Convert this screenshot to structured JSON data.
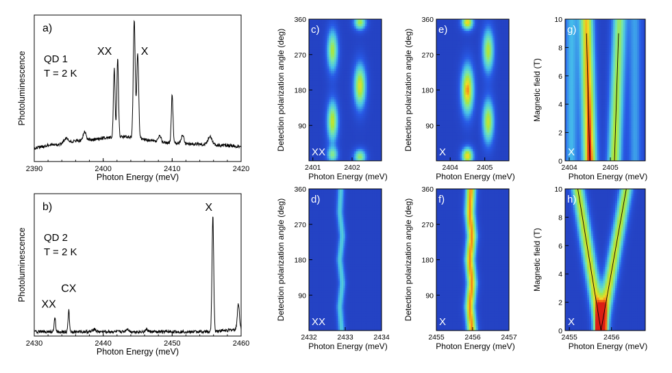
{
  "chart_data": [
    {
      "id": "a",
      "type": "line",
      "panel_label": "a)",
      "annotation_lines": [
        "QD 1",
        "T = 2 K"
      ],
      "xlabel": "Photon Energy (meV)",
      "ylabel": "Photoluminescence",
      "xlim": [
        2390,
        2420
      ],
      "ylim": [
        0,
        100
      ],
      "xticks": [
        2390,
        2400,
        2410,
        2420
      ],
      "peak_labels": [
        {
          "text": "XX",
          "x": 2400.2,
          "y": 73
        },
        {
          "text": "X",
          "x": 2406.0,
          "y": 73
        }
      ],
      "baseline": {
        "x": [
          2390,
          2392,
          2394,
          2396,
          2398,
          2399,
          2400,
          2403,
          2405,
          2407,
          2409,
          2412,
          2414,
          2416,
          2418,
          2420
        ],
        "y": [
          9,
          11,
          12,
          14,
          15,
          15,
          16,
          17,
          16,
          14,
          13,
          12,
          12,
          11,
          11,
          10
        ]
      },
      "peaks": [
        {
          "x": 2401.6,
          "h": 47,
          "w": 0.12
        },
        {
          "x": 2402.1,
          "h": 53,
          "w": 0.12
        },
        {
          "x": 2404.5,
          "h": 80,
          "w": 0.14
        },
        {
          "x": 2405.0,
          "h": 58,
          "w": 0.14
        },
        {
          "x": 2410.0,
          "h": 33,
          "w": 0.12
        },
        {
          "x": 2408.2,
          "h": 4,
          "w": 0.2
        },
        {
          "x": 2411.5,
          "h": 6,
          "w": 0.2
        },
        {
          "x": 2415.5,
          "h": 6,
          "w": 0.3
        },
        {
          "x": 2394.6,
          "h": 3,
          "w": 0.3
        },
        {
          "x": 2397.3,
          "h": 6,
          "w": 0.2
        }
      ]
    },
    {
      "id": "b",
      "type": "line",
      "panel_label": "b)",
      "annotation_lines": [
        "QD 2",
        "T = 2 K"
      ],
      "xlabel": "Photon Energy (meV)",
      "ylabel": "Photoluminescence",
      "xlim": [
        2430,
        2460
      ],
      "ylim": [
        0,
        100
      ],
      "xticks": [
        2430,
        2440,
        2450,
        2460
      ],
      "peak_labels": [
        {
          "text": "XX",
          "x": 2432.1,
          "y": 20
        },
        {
          "text": "CX",
          "x": 2435.0,
          "y": 31
        },
        {
          "text": "X",
          "x": 2455.3,
          "y": 88
        }
      ],
      "baseline": {
        "x": [
          2430,
          2435,
          2440,
          2445,
          2450,
          2455,
          2458,
          2460
        ],
        "y": [
          3,
          3,
          3,
          3,
          3,
          3,
          4,
          5
        ]
      },
      "peaks": [
        {
          "x": 2433.0,
          "h": 10,
          "w": 0.1
        },
        {
          "x": 2435.0,
          "h": 15,
          "w": 0.1
        },
        {
          "x": 2455.9,
          "h": 82,
          "w": 0.12
        },
        {
          "x": 2459.6,
          "h": 18,
          "w": 0.15
        },
        {
          "x": 2438.7,
          "h": 2,
          "w": 0.2
        },
        {
          "x": 2443.5,
          "h": 2,
          "w": 0.2
        },
        {
          "x": 2446.3,
          "h": 1.5,
          "w": 0.2
        }
      ]
    },
    {
      "id": "c",
      "type": "heatmap",
      "panel_label": "c)",
      "corner_label": "XX",
      "xlabel": "Photon Energy (meV)",
      "ylabel": "Detection polarization angle (deg)",
      "xlim": [
        2400.9,
        2402.75
      ],
      "ylim": [
        0,
        360
      ],
      "xticks": [
        2401,
        2402
      ],
      "yticks": [
        90,
        180,
        270,
        360
      ],
      "blobs": [
        {
          "x": 2401.5,
          "y": 15,
          "sx": 0.1,
          "sy": 14,
          "a": 0.55
        },
        {
          "x": 2401.5,
          "y": 100,
          "sx": 0.1,
          "sy": 38,
          "a": 0.75
        },
        {
          "x": 2401.5,
          "y": 280,
          "sx": 0.1,
          "sy": 38,
          "a": 0.7
        },
        {
          "x": 2402.2,
          "y": 10,
          "sx": 0.11,
          "sy": 14,
          "a": 0.65
        },
        {
          "x": 2402.2,
          "y": 190,
          "sx": 0.11,
          "sy": 40,
          "a": 0.8
        },
        {
          "x": 2402.2,
          "y": 352,
          "sx": 0.11,
          "sy": 14,
          "a": 0.7
        }
      ]
    },
    {
      "id": "d",
      "type": "heatmap",
      "panel_label": "d)",
      "corner_label": "XX",
      "xlabel": "Photon Energy (meV)",
      "ylabel": "Detection polarization angle (deg)",
      "xlim": [
        2432,
        2434
      ],
      "ylim": [
        0,
        360
      ],
      "xticks": [
        2432,
        2433,
        2434
      ],
      "yticks": [
        90,
        180,
        270,
        360
      ],
      "line": {
        "angles": [
          0,
          60,
          120,
          180,
          240,
          300,
          360
        ],
        "x": [
          2432.9,
          2432.85,
          2432.92,
          2432.85,
          2432.92,
          2432.85,
          2432.88
        ],
        "sx": 0.07,
        "a": 0.42
      }
    },
    {
      "id": "e",
      "type": "heatmap",
      "panel_label": "e)",
      "corner_label": "X",
      "xlabel": "Photon Energy (meV)",
      "ylabel": "Detection polarization angle (deg)",
      "xlim": [
        2403.6,
        2405.7
      ],
      "ylim": [
        0,
        360
      ],
      "xticks": [
        2404,
        2405
      ],
      "yticks": [
        90,
        180,
        270,
        360
      ],
      "blobs": [
        {
          "x": 2404.5,
          "y": 12,
          "sx": 0.12,
          "sy": 16,
          "a": 0.85
        },
        {
          "x": 2404.5,
          "y": 180,
          "sx": 0.13,
          "sy": 45,
          "a": 0.9
        },
        {
          "x": 2404.5,
          "y": 352,
          "sx": 0.12,
          "sy": 14,
          "a": 0.85
        },
        {
          "x": 2405.1,
          "y": 100,
          "sx": 0.12,
          "sy": 40,
          "a": 0.75
        },
        {
          "x": 2405.1,
          "y": 280,
          "sx": 0.12,
          "sy": 40,
          "a": 0.72
        }
      ]
    },
    {
      "id": "f",
      "type": "heatmap",
      "panel_label": "f)",
      "corner_label": "X",
      "xlabel": "Photon Energy (meV)",
      "ylabel": "Detection polarization angle (deg)",
      "xlim": [
        2455,
        2457
      ],
      "ylim": [
        0,
        360
      ],
      "xticks": [
        2455,
        2456,
        2457
      ],
      "yticks": [
        90,
        180,
        270,
        360
      ],
      "line": {
        "angles": [
          0,
          60,
          120,
          180,
          240,
          300,
          360
        ],
        "x": [
          2455.98,
          2455.92,
          2455.98,
          2455.92,
          2455.98,
          2455.92,
          2455.95
        ],
        "sx": 0.1,
        "a": 0.9
      }
    },
    {
      "id": "g",
      "type": "heatmap",
      "panel_label": "g)",
      "corner_label": "X",
      "xlabel": "Photon Energy (meV)",
      "ylabel": "Magnetic field (T)",
      "xlim": [
        2403.9,
        2405.85
      ],
      "ylim": [
        0,
        10
      ],
      "xticks": [
        2404,
        2405
      ],
      "yticks": [
        0,
        2,
        4,
        6,
        8,
        10
      ],
      "branches": [
        {
          "x0": 2404.5,
          "x1": 2404.42,
          "a0": 1.0,
          "a1": 0.85,
          "sx": 0.12
        },
        {
          "x0": 2405.1,
          "x1": 2405.22,
          "a0": 0.75,
          "a1": 0.65,
          "sx": 0.12
        },
        {
          "x0": 2404.05,
          "x1": 2404.05,
          "a0": 0.35,
          "a1": 0.35,
          "sx": 0.12
        },
        {
          "x0": 2405.6,
          "x1": 2405.6,
          "a0": 0.3,
          "a1": 0.3,
          "sx": 0.12
        }
      ],
      "fit_lines": [
        {
          "x": [
            2404.5,
            2404.42
          ],
          "y": [
            0,
            9
          ]
        },
        {
          "x": [
            2405.1,
            2405.2
          ],
          "y": [
            0,
            9
          ]
        }
      ]
    },
    {
      "id": "h",
      "type": "heatmap",
      "panel_label": "h)",
      "corner_label": "X",
      "xlabel": "Photon Energy (meV)",
      "ylabel": "Magnetic field (T)",
      "xlim": [
        2454.9,
        2456.8
      ],
      "ylim": [
        0,
        10
      ],
      "xticks": [
        2455,
        2456
      ],
      "yticks": [
        0,
        2,
        4,
        6,
        8,
        10
      ],
      "branches": [
        {
          "x0": 2455.75,
          "x1": 2455.2,
          "a0": 0.85,
          "a1": 0.75,
          "sx": 0.11
        },
        {
          "x0": 2455.75,
          "x1": 2456.35,
          "a0": 0.85,
          "a1": 0.72,
          "sx": 0.11
        }
      ],
      "fit_lines": [
        {
          "x": [
            2455.75,
            2455.2
          ],
          "y": [
            0,
            10
          ]
        },
        {
          "x": [
            2455.75,
            2456.35
          ],
          "y": [
            0,
            10
          ]
        }
      ]
    }
  ]
}
